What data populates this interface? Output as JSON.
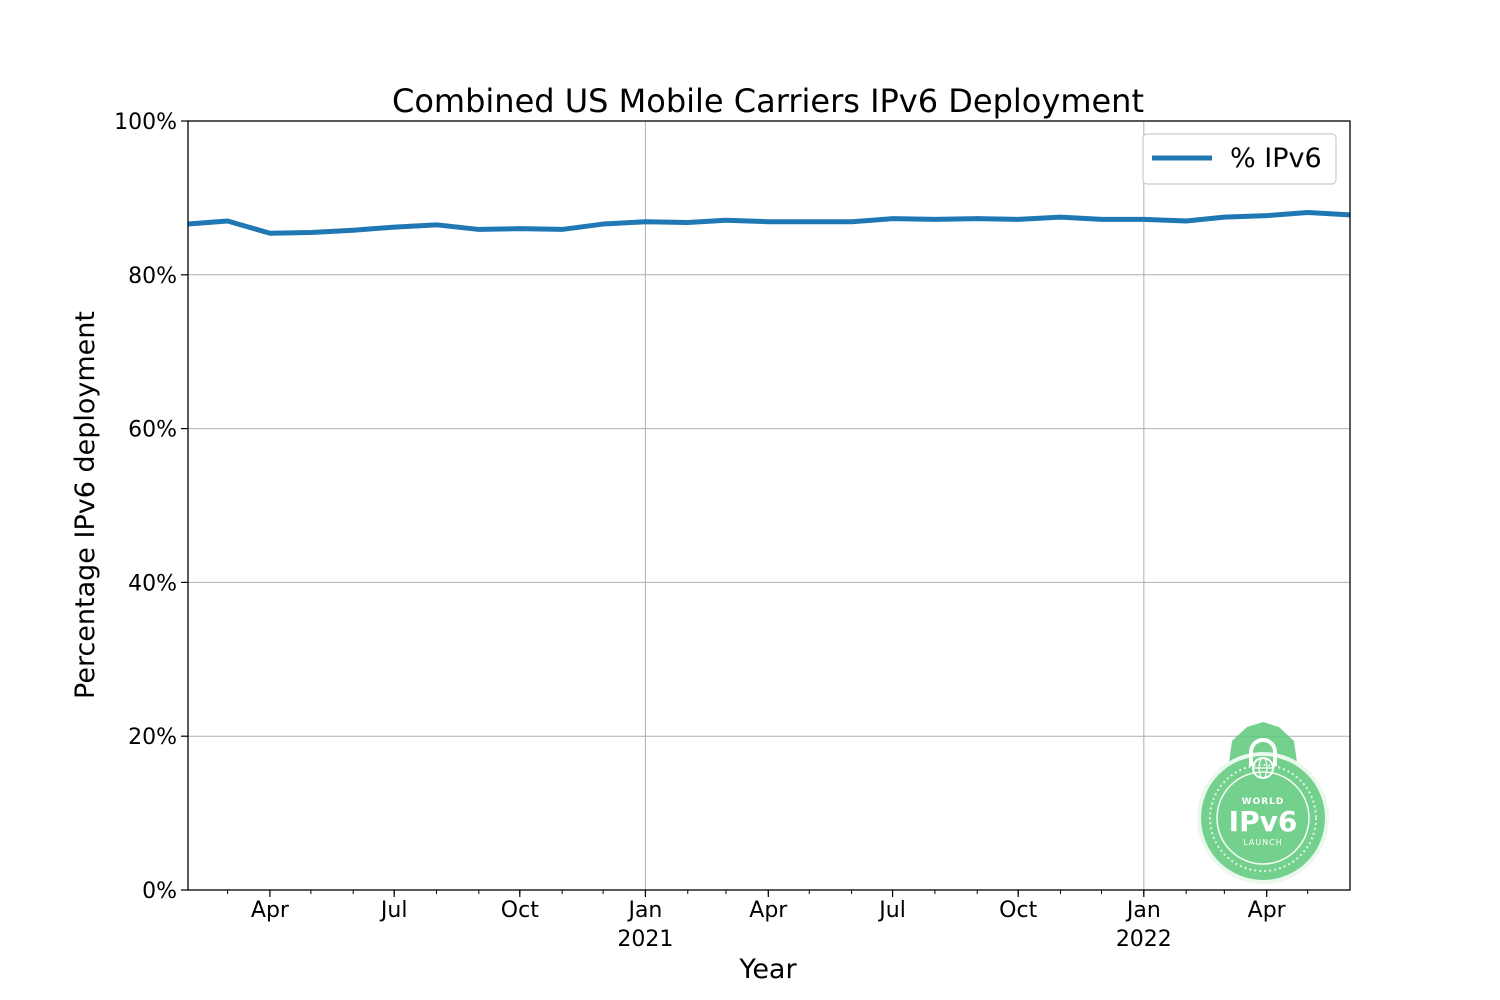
{
  "chart_data": {
    "type": "line",
    "title": "Combined US Mobile Carriers IPv6 Deployment",
    "xlabel": "Year",
    "ylabel": "Percentage IPv6 deployment",
    "ylim": [
      0,
      100
    ],
    "xlim": [
      "2020-02-01",
      "2022-06-01"
    ],
    "y_ticks": [
      {
        "value": 0,
        "label": "0%"
      },
      {
        "value": 20,
        "label": "20%"
      },
      {
        "value": 40,
        "label": "40%"
      },
      {
        "value": 60,
        "label": "60%"
      },
      {
        "value": 80,
        "label": "80%"
      },
      {
        "value": 100,
        "label": "100%"
      }
    ],
    "x_ticks": [
      {
        "date": "2020-04-01",
        "label": "Apr",
        "sublabel": ""
      },
      {
        "date": "2020-07-01",
        "label": "Jul",
        "sublabel": ""
      },
      {
        "date": "2020-10-01",
        "label": "Oct",
        "sublabel": ""
      },
      {
        "date": "2021-01-01",
        "label": "Jan",
        "sublabel": "2021"
      },
      {
        "date": "2021-04-01",
        "label": "Apr",
        "sublabel": ""
      },
      {
        "date": "2021-07-01",
        "label": "Jul",
        "sublabel": ""
      },
      {
        "date": "2021-10-01",
        "label": "Oct",
        "sublabel": ""
      },
      {
        "date": "2022-01-01",
        "label": "Jan",
        "sublabel": "2022"
      },
      {
        "date": "2022-04-01",
        "label": "Apr",
        "sublabel": ""
      }
    ],
    "grid": "major x at year starts, horizontal at y ticks",
    "legend_position": "top-right",
    "series": [
      {
        "name": "% IPv6",
        "color": "#1f77b4",
        "x": [
          "2020-02-01",
          "2020-03-01",
          "2020-04-01",
          "2020-05-01",
          "2020-06-01",
          "2020-07-01",
          "2020-08-01",
          "2020-09-01",
          "2020-10-01",
          "2020-11-01",
          "2020-12-01",
          "2021-01-01",
          "2021-02-01",
          "2021-03-01",
          "2021-04-01",
          "2021-05-01",
          "2021-06-01",
          "2021-07-01",
          "2021-08-01",
          "2021-09-01",
          "2021-10-01",
          "2021-11-01",
          "2021-12-01",
          "2022-01-01",
          "2022-02-01",
          "2022-03-01",
          "2022-04-01",
          "2022-05-01",
          "2022-06-01"
        ],
        "y": [
          86.6,
          87.0,
          85.4,
          85.5,
          85.8,
          86.2,
          86.5,
          85.9,
          86.0,
          85.9,
          86.6,
          86.9,
          86.8,
          87.1,
          86.9,
          86.9,
          86.9,
          87.3,
          87.2,
          87.3,
          87.2,
          87.5,
          87.2,
          87.2,
          87.0,
          87.5,
          87.7,
          88.1,
          87.8
        ]
      }
    ]
  },
  "watermark": {
    "top_text": "WORLD",
    "main_text": "IPv6",
    "bottom_text": "LAUNCH",
    "color": "#5cc97a"
  }
}
